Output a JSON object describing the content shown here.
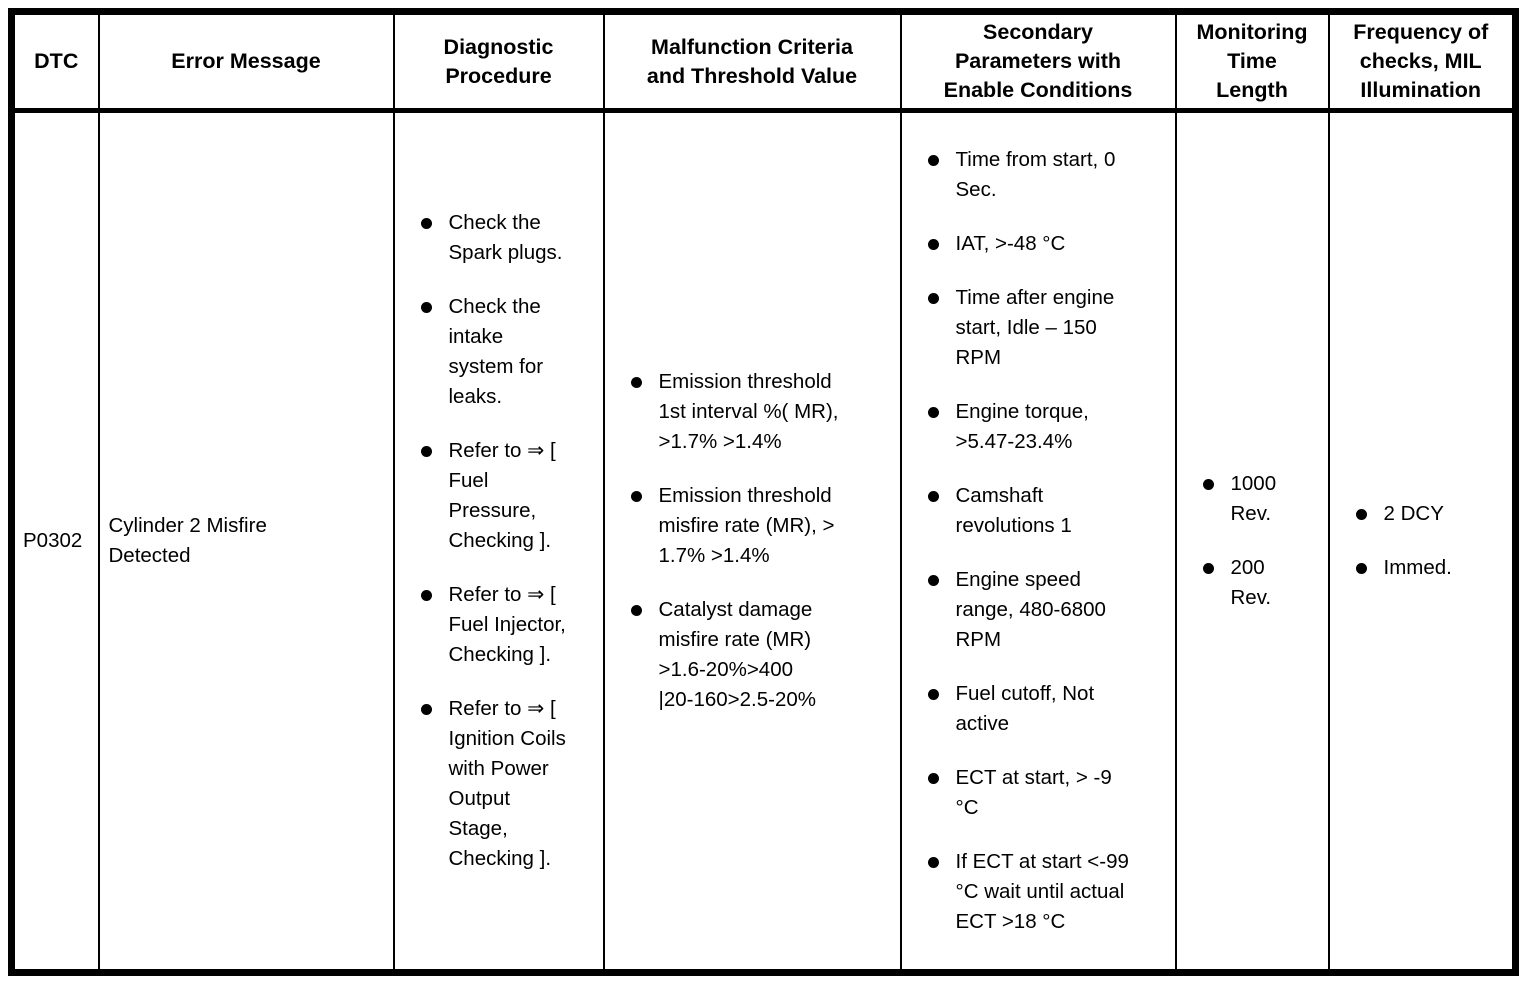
{
  "colors": {
    "background": "#ffffff",
    "text": "#000000",
    "border": "#000000"
  },
  "table": {
    "columns": [
      {
        "label": "DTC"
      },
      {
        "label": "Error Message"
      },
      {
        "label": "Diagnostic\nProcedure"
      },
      {
        "label": "Malfunction Criteria\nand Threshold Value"
      },
      {
        "label": "Secondary\nParameters with\nEnable Conditions"
      },
      {
        "label": "Monitoring\nTime\nLength"
      },
      {
        "label": "Frequency of\nchecks, MIL\nIllumination"
      }
    ],
    "row": {
      "dtc": "P0302",
      "error_message": "Cylinder 2 Misfire\nDetected",
      "diagnostic_procedure": [
        "Check the\nSpark plugs.",
        "Check the\nintake\nsystem for\nleaks.",
        "Refer to ⇒ [\nFuel\nPressure,\nChecking ].",
        "Refer to ⇒ [\nFuel Injector,\nChecking ].",
        "Refer to ⇒ [\nIgnition Coils\nwith Power\nOutput\nStage,\nChecking ]."
      ],
      "malfunction_criteria": [
        "Emission threshold\n1st interval %( MR),\n>1.7% >1.4%",
        "Emission threshold\nmisfire rate (MR), >\n1.7% >1.4%",
        "Catalyst damage\nmisfire rate (MR)\n>1.6-20%>400\n|20-160>2.5-20%"
      ],
      "secondary_parameters": [
        "Time from start, 0\nSec.",
        "IAT, >-48 °C",
        "Time after engine\nstart, Idle – 150\nRPM",
        "Engine torque,\n>5.47-23.4%",
        "Camshaft\nrevolutions 1",
        "Engine speed\nrange, 480-6800\nRPM",
        "Fuel cutoff, Not\nactive",
        "ECT at start, > -9\n°C",
        "If ECT at start <-99\n°C wait until actual\nECT >18 °C"
      ],
      "monitoring_time": [
        "1000\nRev.",
        "200\nRev."
      ],
      "frequency_checks": [
        "2 DCY",
        "Immed."
      ]
    }
  }
}
